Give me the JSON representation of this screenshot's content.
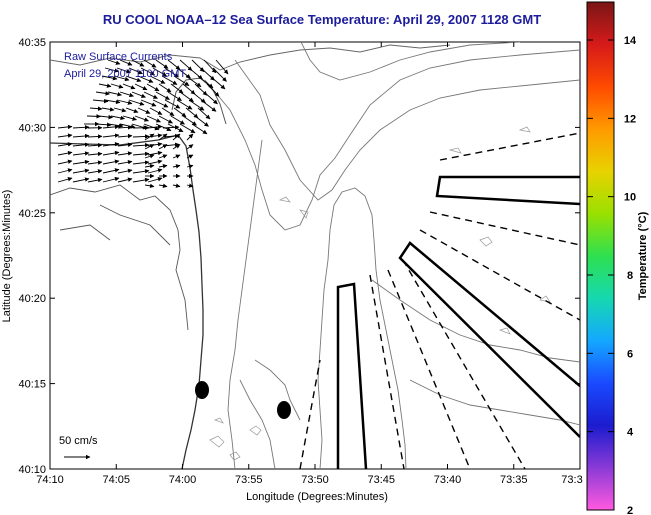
{
  "title": "RU COOL  NOAA–12  Sea Surface Temperature:  April 29, 2007 1128 GMT",
  "annotation": {
    "line1": "Raw Surface Currents",
    "line2": "April 29, 2007 1100 GMT"
  },
  "scale_label": "50 cm/s",
  "map": {
    "xlabel": "Longitude (Degrees:Minutes)",
    "ylabel": "Latitude (Degrees:Minutes)",
    "x_ticks": [
      "74:10",
      "74:05",
      "74:00",
      "73:55",
      "73:50",
      "73:45",
      "73:40",
      "73:35",
      "73:3"
    ],
    "y_ticks": [
      "40:35",
      "40:30",
      "40:25",
      "40:20",
      "40:15",
      "40:10"
    ]
  },
  "colorbar": {
    "label": "Temperature (°C)",
    "ticks": [
      "14",
      "12",
      "10",
      "8",
      "6",
      "4",
      "2"
    ],
    "colors": [
      "#7a1616",
      "#d61a1a",
      "#ff4a00",
      "#ff9a00",
      "#e8d200",
      "#9ae000",
      "#2ee050",
      "#16d8b0",
      "#14a8ff",
      "#1a4aff",
      "#1c1ccf",
      "#8a3ad6",
      "#ff5adf"
    ]
  },
  "markers": [
    {
      "name": "buoy-west"
    },
    {
      "name": "buoy-east"
    }
  ]
}
